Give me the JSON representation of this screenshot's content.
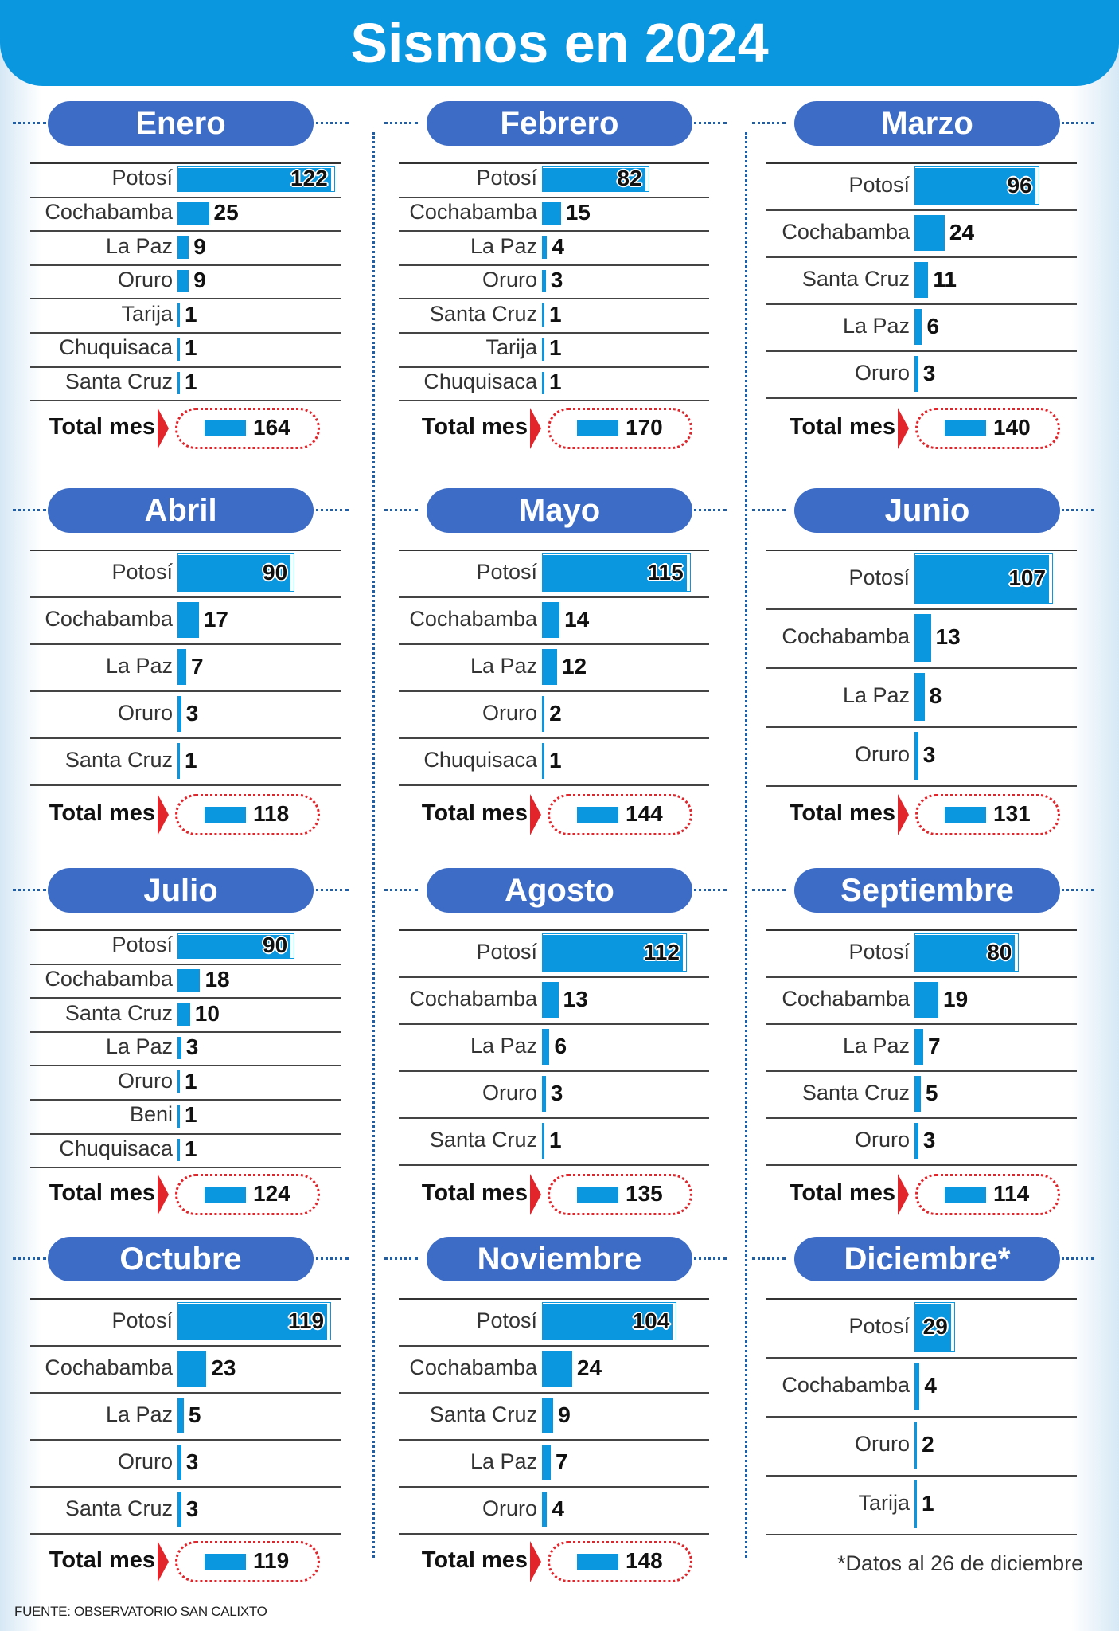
{
  "title": "Sismos en 2024",
  "source": "FUENTE: OBSERVATORIO SAN CALIXTO",
  "note": "*Datos al 26 de diciembre",
  "total_label": "Total mes",
  "colors": {
    "accent": "#0b96e0",
    "pill": "#3d6cc6",
    "total_box": "#e2252b"
  },
  "chart_data": [
    {
      "type": "bar",
      "title": "Enero",
      "categories": [
        "Potosí",
        "Cochabamba",
        "La Paz",
        "Oruro",
        "Tarija",
        "Chuquisaca",
        "Santa Cruz"
      ],
      "values": [
        122,
        25,
        9,
        9,
        1,
        1,
        1
      ],
      "total": 164
    },
    {
      "type": "bar",
      "title": "Febrero",
      "categories": [
        "Potosí",
        "Cochabamba",
        "La Paz",
        "Oruro",
        "Santa Cruz",
        "Tarija",
        "Chuquisaca"
      ],
      "values": [
        82,
        15,
        4,
        3,
        1,
        1,
        1
      ],
      "total": 170
    },
    {
      "type": "bar",
      "title": "Marzo",
      "categories": [
        "Potosí",
        "Cochabamba",
        "Santa Cruz",
        "La Paz",
        "Oruro"
      ],
      "values": [
        96,
        24,
        11,
        6,
        3
      ],
      "total": 140
    },
    {
      "type": "bar",
      "title": "Abril",
      "categories": [
        "Potosí",
        "Cochabamba",
        "La Paz",
        "Oruro",
        "Santa Cruz"
      ],
      "values": [
        90,
        17,
        7,
        3,
        1
      ],
      "total": 118
    },
    {
      "type": "bar",
      "title": "Mayo",
      "categories": [
        "Potosí",
        "Cochabamba",
        "La Paz",
        "Oruro",
        "Chuquisaca"
      ],
      "values": [
        115,
        14,
        12,
        2,
        1
      ],
      "total": 144
    },
    {
      "type": "bar",
      "title": "Junio",
      "categories": [
        "Potosí",
        "Cochabamba",
        "La Paz",
        "Oruro"
      ],
      "values": [
        107,
        13,
        8,
        3
      ],
      "total": 131
    },
    {
      "type": "bar",
      "title": "Julio",
      "categories": [
        "Potosí",
        "Cochabamba",
        "Santa Cruz",
        "La Paz",
        "Oruro",
        "Beni",
        "Chuquisaca"
      ],
      "values": [
        90,
        18,
        10,
        3,
        1,
        1,
        1
      ],
      "total": 124
    },
    {
      "type": "bar",
      "title": "Agosto",
      "categories": [
        "Potosí",
        "Cochabamba",
        "La Paz",
        "Oruro",
        "Santa Cruz"
      ],
      "values": [
        112,
        13,
        6,
        3,
        1
      ],
      "total": 135
    },
    {
      "type": "bar",
      "title": "Septiembre",
      "categories": [
        "Potosí",
        "Cochabamba",
        "La Paz",
        "Santa Cruz",
        "Oruro"
      ],
      "values": [
        80,
        19,
        7,
        5,
        3
      ],
      "total": 114
    },
    {
      "type": "bar",
      "title": "Octubre",
      "categories": [
        "Potosí",
        "Cochabamba",
        "La Paz",
        "Oruro",
        "Santa Cruz"
      ],
      "values": [
        119,
        23,
        5,
        3,
        3
      ],
      "total": 119
    },
    {
      "type": "bar",
      "title": "Noviembre",
      "categories": [
        "Potosí",
        "Cochabamba",
        "Santa Cruz",
        "La Paz",
        "Oruro"
      ],
      "values": [
        104,
        24,
        9,
        7,
        4
      ],
      "total": 148
    },
    {
      "type": "bar",
      "title": "Diciembre*",
      "categories": [
        "Potosí",
        "Cochabamba",
        "Oruro",
        "Tarija"
      ],
      "values": [
        29,
        4,
        2,
        1
      ]
    }
  ]
}
